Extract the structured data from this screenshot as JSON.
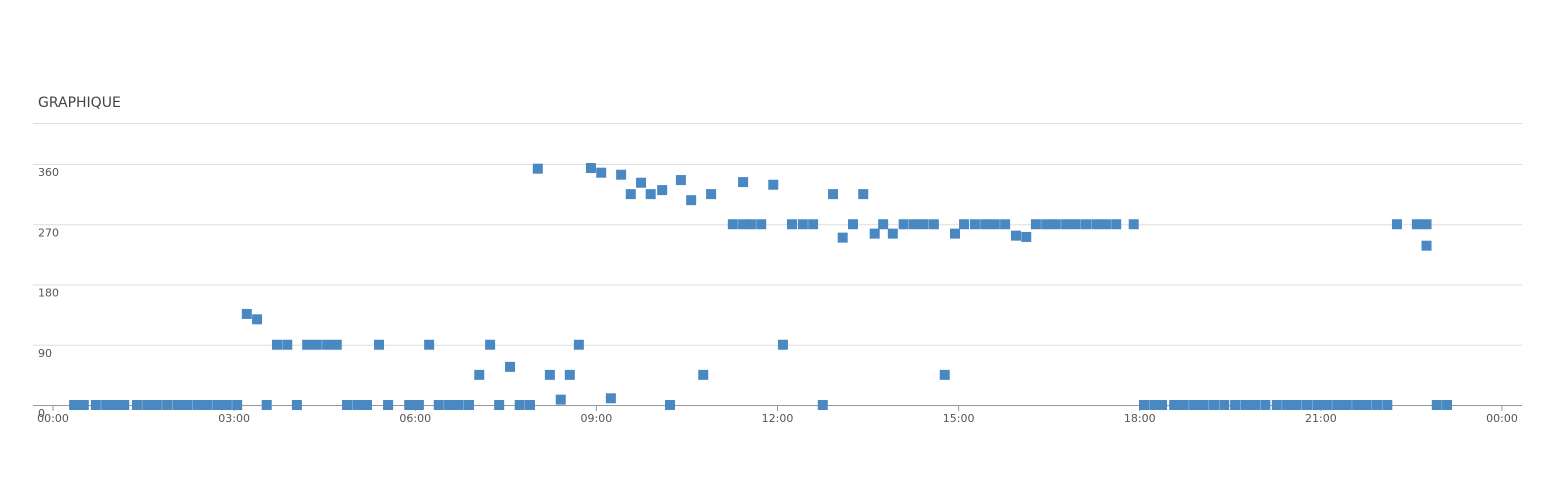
{
  "chart_data": {
    "type": "scatter",
    "title": "GRAPHIQUE",
    "series": [
      {
        "color": "#4a88c2",
        "x": [
          0.35,
          0.51,
          0.71,
          0.88,
          1.04,
          1.18,
          1.39,
          1.56,
          1.72,
          1.89,
          2.06,
          2.22,
          2.39,
          2.55,
          2.72,
          2.88,
          3.05,
          3.54,
          4.04,
          4.87,
          5.04,
          5.2,
          5.55,
          5.9,
          6.06,
          6.39,
          6.56,
          6.72,
          6.89,
          7.39,
          7.73,
          7.9,
          10.22,
          12.75,
          18.07,
          18.24,
          18.37,
          18.57,
          18.73,
          18.9,
          19.06,
          19.23,
          19.4,
          19.58,
          19.75,
          19.91,
          20.08,
          20.27,
          20.44,
          20.6,
          20.77,
          20.94,
          21.1,
          21.27,
          21.43,
          21.6,
          21.76,
          21.93,
          22.1,
          22.92,
          23.09,
          3.21,
          3.38,
          3.71,
          3.88,
          4.21,
          4.37,
          4.54,
          4.7,
          5.4,
          6.23,
          7.24,
          8.71,
          12.09,
          7.06,
          7.57,
          8.23,
          8.56,
          10.77,
          14.77,
          8.41,
          9.24,
          8.03,
          8.91,
          9.08,
          9.41,
          9.57,
          9.74,
          9.9,
          10.09,
          10.4,
          10.57,
          10.9,
          11.43,
          11.93,
          12.92,
          13.42,
          11.26,
          11.43,
          11.56,
          11.73,
          12.24,
          12.42,
          12.59,
          13.25,
          13.75,
          14.09,
          14.26,
          14.42,
          14.59,
          15.09,
          15.27,
          15.44,
          15.6,
          15.77,
          16.28,
          16.45,
          16.61,
          16.78,
          16.94,
          17.11,
          17.28,
          17.44,
          17.61,
          17.9,
          22.26,
          22.59,
          22.75,
          13.08,
          13.61,
          13.91,
          14.94,
          15.95,
          16.12,
          22.75
        ],
        "values": [
          0,
          0,
          0,
          0,
          0,
          0,
          0,
          0,
          0,
          0,
          0,
          0,
          0,
          0,
          0,
          0,
          0,
          0,
          0,
          0,
          0,
          0,
          0,
          0,
          0,
          0,
          0,
          0,
          0,
          0,
          0,
          0,
          0,
          0,
          0,
          0,
          0,
          0,
          0,
          0,
          0,
          0,
          0,
          0,
          0,
          0,
          0,
          0,
          0,
          0,
          0,
          0,
          0,
          0,
          0,
          0,
          0,
          0,
          0,
          0,
          0,
          136,
          128,
          90,
          90,
          90,
          90,
          90,
          90,
          90,
          90,
          90,
          90,
          90,
          45,
          57,
          45,
          45,
          45,
          45,
          8,
          10,
          353,
          354,
          347,
          344,
          315,
          332,
          315,
          321,
          336,
          306,
          315,
          333,
          329,
          315,
          315,
          270,
          270,
          270,
          270,
          270,
          270,
          270,
          270,
          270,
          270,
          270,
          270,
          270,
          270,
          270,
          270,
          270,
          270,
          270,
          270,
          270,
          270,
          270,
          270,
          270,
          270,
          270,
          270,
          270,
          270,
          270,
          250,
          256,
          256,
          256,
          253,
          251,
          238
        ]
      }
    ],
    "xlim": [
      0,
      24
    ],
    "xticks": [
      {
        "value": 0,
        "label": "00:00"
      },
      {
        "value": 3,
        "label": "03:00"
      },
      {
        "value": 6,
        "label": "06:00"
      },
      {
        "value": 9,
        "label": "09:00"
      },
      {
        "value": 12,
        "label": "12:00"
      },
      {
        "value": 15,
        "label": "15:00"
      },
      {
        "value": 18,
        "label": "18:00"
      },
      {
        "value": 21,
        "label": "21:00"
      },
      {
        "value": 24,
        "label": "00:00"
      }
    ],
    "ylim": [
      0,
      360
    ],
    "yticks": [
      0,
      90,
      180,
      270,
      360
    ],
    "grid": true
  }
}
